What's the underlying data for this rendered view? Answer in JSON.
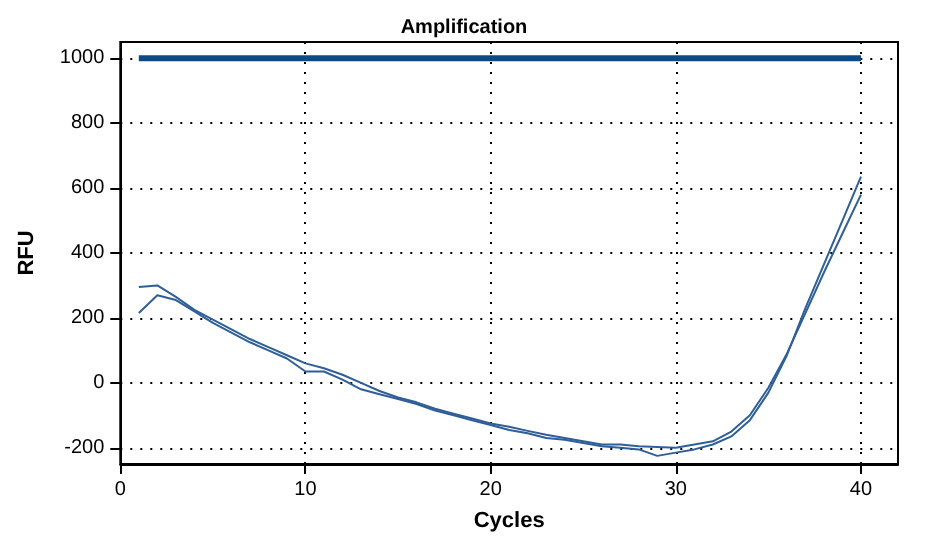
{
  "chart_data": {
    "type": "line",
    "title": "Amplification",
    "xlabel": "Cycles",
    "ylabel": "RFU",
    "x": [
      1,
      2,
      3,
      4,
      5,
      6,
      7,
      8,
      9,
      10,
      11,
      12,
      13,
      14,
      15,
      16,
      17,
      18,
      19,
      20,
      21,
      22,
      23,
      24,
      25,
      26,
      27,
      28,
      29,
      30,
      31,
      32,
      33,
      34,
      35,
      36,
      37,
      38,
      39,
      40
    ],
    "series": [
      {
        "color": "#0b4a87",
        "values": [
          1000,
          1000,
          1000,
          1000,
          1000,
          1000,
          1000,
          1000,
          1000,
          1000,
          1000,
          1000,
          1000,
          1000,
          1000,
          1000,
          1000,
          1000,
          1000,
          1000,
          1000,
          1000,
          1000,
          1000,
          1000,
          1000,
          1000,
          1000,
          1000,
          1000,
          1000,
          1000,
          1000,
          1000,
          1000,
          1000,
          1000,
          1000,
          1000,
          1000
        ]
      },
      {
        "color": "#2f5f98",
        "values": [
          295,
          300,
          265,
          225,
          195,
          165,
          135,
          110,
          85,
          60,
          45,
          25,
          0,
          -25,
          -45,
          -60,
          -80,
          -95,
          -110,
          -125,
          -135,
          -148,
          -160,
          -170,
          -180,
          -190,
          -190,
          -195,
          -198,
          -200,
          -190,
          -180,
          -150,
          -100,
          -15,
          90,
          215,
          340,
          460,
          580
        ]
      },
      {
        "color": "#2f5f98",
        "values": [
          215,
          270,
          255,
          220,
          185,
          155,
          125,
          100,
          75,
          35,
          35,
          10,
          -20,
          -35,
          -50,
          -65,
          -85,
          -100,
          -115,
          -130,
          -145,
          -155,
          -170,
          -175,
          -185,
          -195,
          -200,
          -205,
          -225,
          -215,
          -205,
          -190,
          -165,
          -115,
          -30,
          85,
          230,
          365,
          500,
          635
        ]
      }
    ],
    "xlim": [
      0,
      42
    ],
    "xticks": [
      0,
      10,
      20,
      30,
      40
    ],
    "ylim": [
      -250,
      1050
    ],
    "yticks": [
      -200,
      0,
      200,
      400,
      600,
      800,
      1000
    ],
    "grid": true,
    "marker": "none",
    "line_style": "solid"
  }
}
